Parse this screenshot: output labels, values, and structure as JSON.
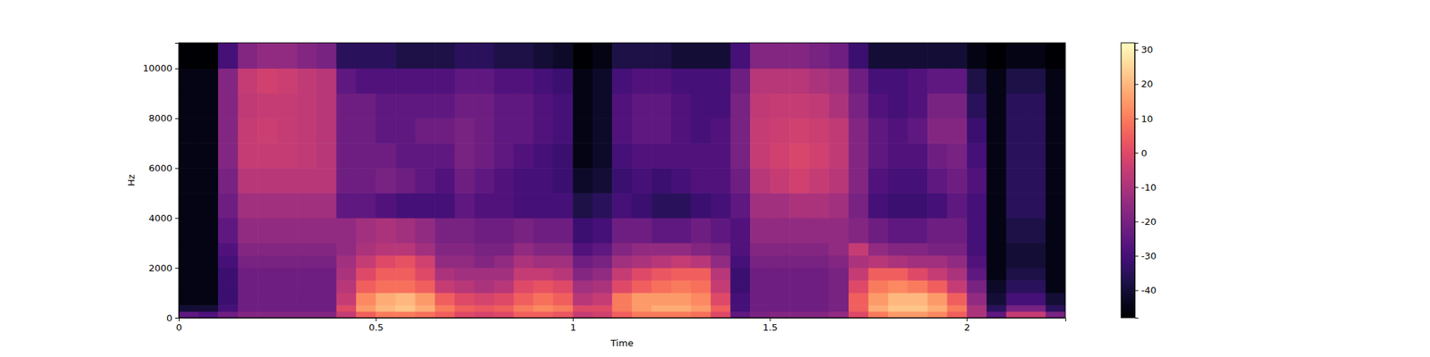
{
  "chart_data": {
    "type": "heatmap",
    "xlabel": "Time",
    "ylabel": "Hz",
    "color": "magma",
    "xlim": [
      0,
      2.25
    ],
    "ylim": [
      0,
      11025
    ],
    "xticks": [
      0,
      0.5,
      1,
      1.5,
      2
    ],
    "yticks": [
      0,
      2000,
      4000,
      6000,
      8000,
      10000
    ],
    "x_edges": [
      0,
      0.05,
      0.1,
      0.15,
      0.2,
      0.25,
      0.3,
      0.35,
      0.4,
      0.45,
      0.5,
      0.55,
      0.6,
      0.65,
      0.7,
      0.75,
      0.8,
      0.85,
      0.9,
      0.95,
      1,
      1.05,
      1.1,
      1.15,
      1.2,
      1.25,
      1.3,
      1.35,
      1.4,
      1.45,
      1.5,
      1.55,
      1.6,
      1.65,
      1.7,
      1.75,
      1.8,
      1.85,
      1.9,
      1.95,
      2,
      2.05,
      2.1,
      2.15,
      2.2,
      2.25
    ],
    "y_edges": [
      0,
      250,
      500,
      1000,
      1500,
      2000,
      2500,
      3000,
      4000,
      5000,
      6000,
      7000,
      8000,
      9000,
      10000,
      11025
    ],
    "cells": [
      [
        -25,
        -28,
        -22,
        -18,
        -18,
        -18,
        -18,
        -18,
        -5,
        5,
        10,
        10,
        8,
        5,
        0,
        -2,
        0,
        5,
        5,
        3,
        -5,
        -3,
        5,
        10,
        10,
        10,
        8,
        0,
        -25,
        -20,
        -18,
        -18,
        -18,
        -15,
        0,
        10,
        15,
        15,
        12,
        5,
        -10,
        -25,
        -5,
        -5,
        -20
      ],
      [
        -40,
        -40,
        -30,
        -22,
        -22,
        -22,
        -22,
        -22,
        0,
        15,
        20,
        22,
        18,
        10,
        5,
        3,
        5,
        10,
        12,
        10,
        0,
        0,
        10,
        15,
        18,
        18,
        15,
        5,
        -30,
        -22,
        -22,
        -22,
        -22,
        -20,
        5,
        18,
        22,
        22,
        18,
        10,
        -10,
        -35,
        -20,
        -20,
        -35
      ],
      [
        -45,
        -45,
        -32,
        -22,
        -22,
        -22,
        -22,
        -22,
        -5,
        12,
        18,
        20,
        15,
        5,
        0,
        -2,
        0,
        5,
        8,
        5,
        -8,
        -5,
        10,
        15,
        15,
        15,
        12,
        0,
        -30,
        -22,
        -22,
        -22,
        -22,
        -20,
        5,
        15,
        20,
        20,
        15,
        5,
        -15,
        -40,
        -30,
        -30,
        -40
      ],
      [
        -45,
        -45,
        -32,
        -22,
        -22,
        -22,
        -22,
        -22,
        -8,
        5,
        8,
        8,
        5,
        -5,
        -8,
        -10,
        -8,
        0,
        2,
        0,
        -12,
        -10,
        0,
        5,
        8,
        10,
        8,
        -5,
        -32,
        -22,
        -22,
        -22,
        -22,
        -20,
        0,
        10,
        12,
        10,
        5,
        -5,
        -20,
        -42,
        -35,
        -35,
        -45
      ],
      [
        -45,
        -45,
        -32,
        -22,
        -22,
        -22,
        -22,
        -22,
        -10,
        0,
        5,
        5,
        0,
        -10,
        -12,
        -12,
        -12,
        -5,
        -5,
        -8,
        -18,
        -15,
        -5,
        0,
        3,
        5,
        5,
        -8,
        -32,
        -22,
        -22,
        -22,
        -22,
        -20,
        -5,
        5,
        5,
        0,
        -5,
        -10,
        -25,
        -45,
        -38,
        -38,
        -45
      ],
      [
        -45,
        -45,
        -30,
        -20,
        -20,
        -20,
        -20,
        -20,
        -12,
        -5,
        0,
        2,
        -3,
        -15,
        -15,
        -18,
        -15,
        -10,
        -12,
        -12,
        -22,
        -20,
        -12,
        -10,
        -8,
        -5,
        -8,
        -15,
        -30,
        -20,
        -20,
        -20,
        -20,
        -18,
        -10,
        -8,
        -10,
        -12,
        -12,
        -15,
        -28,
        -45,
        -40,
        -40,
        -45
      ],
      [
        -45,
        -45,
        -28,
        -18,
        -18,
        -18,
        -18,
        -18,
        -15,
        -10,
        -8,
        -8,
        -12,
        -18,
        -18,
        -20,
        -20,
        -15,
        -18,
        -18,
        -28,
        -25,
        -18,
        -15,
        -15,
        -15,
        -18,
        -20,
        -28,
        -18,
        -18,
        -18,
        -18,
        -15,
        -5,
        -15,
        -18,
        -18,
        -20,
        -20,
        -30,
        -45,
        -40,
        -40,
        -45
      ],
      [
        -45,
        -45,
        -25,
        -15,
        -15,
        -15,
        -15,
        -15,
        -15,
        -12,
        -10,
        -12,
        -15,
        -20,
        -20,
        -22,
        -22,
        -20,
        -22,
        -22,
        -32,
        -30,
        -22,
        -22,
        -25,
        -25,
        -22,
        -25,
        -28,
        -15,
        -15,
        -15,
        -15,
        -15,
        -18,
        -22,
        -25,
        -25,
        -22,
        -22,
        -30,
        -45,
        -38,
        -38,
        -45
      ],
      [
        -45,
        -45,
        -22,
        -12,
        -12,
        -12,
        -12,
        -12,
        -25,
        -25,
        -28,
        -30,
        -30,
        -30,
        -25,
        -28,
        -28,
        -30,
        -30,
        -30,
        -38,
        -35,
        -30,
        -32,
        -35,
        -35,
        -32,
        -30,
        -25,
        -12,
        -12,
        -10,
        -10,
        -12,
        -20,
        -30,
        -32,
        -32,
        -30,
        -25,
        -30,
        -45,
        -35,
        -35,
        -45
      ],
      [
        -45,
        -45,
        -20,
        -8,
        -8,
        -8,
        -8,
        -8,
        -22,
        -22,
        -20,
        -22,
        -25,
        -28,
        -22,
        -25,
        -28,
        -30,
        -30,
        -32,
        -42,
        -40,
        -32,
        -30,
        -32,
        -30,
        -28,
        -28,
        -22,
        -8,
        -5,
        -3,
        -5,
        -8,
        -18,
        -28,
        -30,
        -30,
        -25,
        -22,
        -28,
        -45,
        -35,
        -35,
        -45
      ],
      [
        -45,
        -45,
        -18,
        -5,
        -5,
        -5,
        -6,
        -8,
        -22,
        -22,
        -22,
        -25,
        -25,
        -25,
        -20,
        -22,
        -25,
        -28,
        -30,
        -32,
        -45,
        -42,
        -30,
        -28,
        -28,
        -28,
        -28,
        -28,
        -20,
        -5,
        -3,
        -1,
        -3,
        -6,
        -18,
        -25,
        -28,
        -28,
        -22,
        -20,
        -30,
        -45,
        -35,
        -35,
        -45
      ],
      [
        -45,
        -45,
        -18,
        -5,
        -4,
        -5,
        -6,
        -8,
        -22,
        -22,
        -25,
        -25,
        -22,
        -22,
        -20,
        -22,
        -25,
        -25,
        -28,
        -30,
        -45,
        -42,
        -28,
        -25,
        -25,
        -28,
        -30,
        -28,
        -20,
        -5,
        -4,
        -3,
        -4,
        -6,
        -18,
        -25,
        -28,
        -25,
        -18,
        -18,
        -32,
        -45,
        -35,
        -35,
        -45
      ],
      [
        -45,
        -45,
        -18,
        -6,
        -5,
        -5,
        -6,
        -8,
        -22,
        -22,
        -25,
        -25,
        -25,
        -25,
        -22,
        -22,
        -25,
        -25,
        -28,
        -30,
        -45,
        -42,
        -28,
        -25,
        -25,
        -28,
        -30,
        -30,
        -20,
        -6,
        -5,
        -5,
        -6,
        -10,
        -20,
        -28,
        -30,
        -28,
        -20,
        -20,
        -35,
        -45,
        -35,
        -35,
        -45
      ],
      [
        -45,
        -45,
        -18,
        -5,
        -3,
        -4,
        -6,
        -8,
        -25,
        -28,
        -28,
        -28,
        -28,
        -28,
        -25,
        -25,
        -28,
        -28,
        -30,
        -32,
        -45,
        -42,
        -30,
        -28,
        -28,
        -30,
        -30,
        -30,
        -22,
        -8,
        -8,
        -8,
        -10,
        -12,
        -22,
        -30,
        -30,
        -28,
        -25,
        -25,
        -38,
        -45,
        -38,
        -38,
        -45
      ],
      [
        -48,
        -48,
        -30,
        -18,
        -15,
        -15,
        -18,
        -20,
        -35,
        -35,
        -35,
        -38,
        -38,
        -38,
        -35,
        -35,
        -38,
        -38,
        -40,
        -42,
        -48,
        -45,
        -38,
        -38,
        -38,
        -40,
        -40,
        -40,
        -30,
        -18,
        -18,
        -18,
        -20,
        -22,
        -32,
        -40,
        -40,
        -40,
        -40,
        -40,
        -45,
        -48,
        -45,
        -45,
        -48
      ]
    ],
    "colorbar": {
      "range": [
        -48,
        32
      ],
      "ticks": [
        -40,
        -30,
        -20,
        -10,
        0,
        10,
        20,
        30
      ]
    }
  }
}
